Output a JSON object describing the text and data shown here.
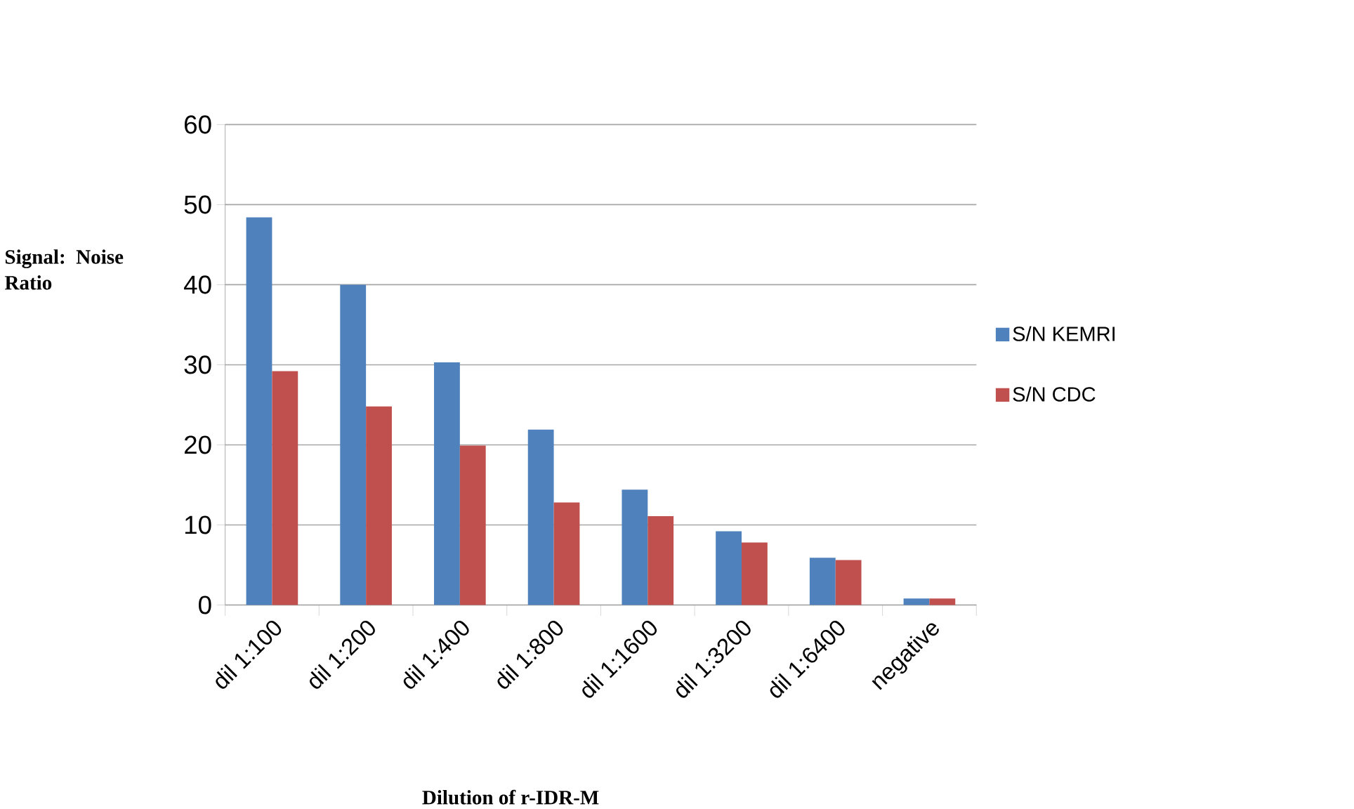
{
  "chart_data": {
    "type": "bar",
    "xlabel": "Dilution of r-IDR-M",
    "ylabel": "Signal: Noise Ratio",
    "categories": [
      "dil 1:100",
      "dil 1:200",
      "dil 1:400",
      "dil 1:800",
      "dil 1:1600",
      "dil 1:3200",
      "dil 1:6400",
      "negative"
    ],
    "series": [
      {
        "name": "S/N KEMRI",
        "color": "#4f81bd",
        "values": [
          48.4,
          40.0,
          30.3,
          21.9,
          14.4,
          9.2,
          5.9,
          0.8
        ]
      },
      {
        "name": "S/N CDC",
        "color": "#c0504d",
        "values": [
          29.2,
          24.8,
          19.9,
          12.8,
          11.1,
          7.8,
          5.6,
          0.8
        ]
      }
    ],
    "ylim": [
      0,
      60
    ],
    "yticks": [
      0,
      10,
      20,
      30,
      40,
      50,
      60
    ],
    "grid": "y",
    "legend": "right"
  }
}
